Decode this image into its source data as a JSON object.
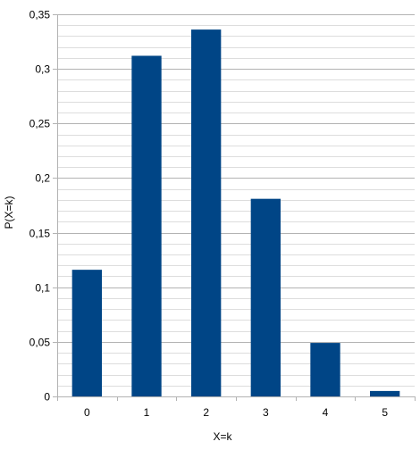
{
  "chart_data": {
    "type": "bar",
    "categories": [
      "0",
      "1",
      "2",
      "3",
      "4",
      "5"
    ],
    "values": [
      0.116,
      0.312,
      0.336,
      0.181,
      0.049,
      0.005
    ],
    "title": "",
    "xlabel": "X=k",
    "ylabel": "P(X=k)",
    "ylim": [
      0,
      0.35
    ],
    "y_major_ticks": [
      "0",
      "0,05",
      "0,1",
      "0,15",
      "0,2",
      "0,25",
      "0,3",
      "0,35"
    ],
    "y_major_tick_values": [
      0,
      0.05,
      0.1,
      0.15,
      0.2,
      0.25,
      0.3,
      0.35
    ],
    "y_minor_step": 0.01,
    "grid": true,
    "legend": false,
    "colors": {
      "bar": "#004586",
      "major_grid": "#b3b3b3",
      "minor_grid": "#dddddd",
      "axis": "#b3b3b3"
    }
  }
}
